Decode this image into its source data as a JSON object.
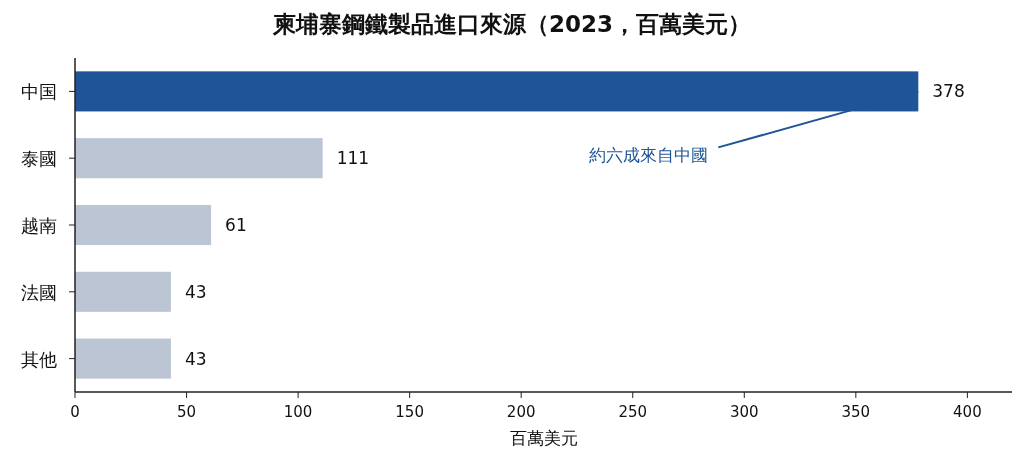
{
  "chart_data": {
    "type": "bar",
    "orientation": "horizontal",
    "title": "柬埔寨鋼鐵製品進口來源（2023，百萬美元）",
    "xlabel": "百萬美元",
    "categories": [
      "中国",
      "泰國",
      "越南",
      "法國",
      "其他"
    ],
    "values": [
      378,
      111,
      61,
      43,
      43
    ],
    "colors": [
      "#1f5596",
      "#bcc5d3",
      "#bcc5d3",
      "#bcc5d3",
      "#bcc5d3"
    ],
    "xlim": [
      0,
      420
    ],
    "xticks": [
      0,
      50,
      100,
      150,
      200,
      250,
      300,
      350,
      400
    ],
    "data_labels": true,
    "annotations": [
      {
        "text": "約六成來自中國",
        "x": 378,
        "y": "中国"
      }
    ]
  }
}
